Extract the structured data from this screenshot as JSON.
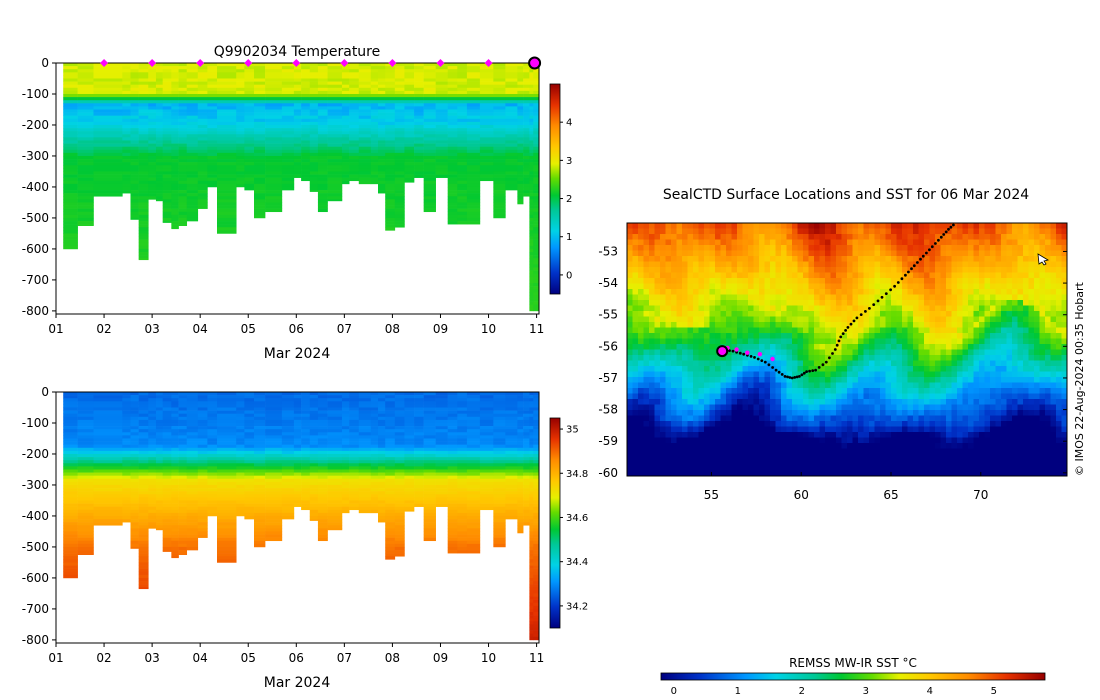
{
  "chart_data": [
    {
      "type": "heatmap",
      "title": "Q9902034  Temperature",
      "xlabel": "Mar 2024",
      "ylabel": "",
      "xlim": [
        1,
        11.05
      ],
      "ylim": [
        -810,
        0
      ],
      "xticks": [
        "01",
        "02",
        "03",
        "04",
        "05",
        "06",
        "07",
        "08",
        "09",
        "10",
        "11"
      ],
      "yticks": [
        "0",
        "-100",
        "-200",
        "-300",
        "-400",
        "-500",
        "-600",
        "-700",
        "-800"
      ],
      "surface_markers_day": [
        2,
        3,
        4,
        5,
        6,
        7,
        8,
        9,
        10,
        11
      ],
      "current_marker_day": 11,
      "profile_starts_day": [
        1.15,
        1.45,
        1.78,
        2.38,
        2.55,
        2.72,
        2.92,
        3.08,
        3.22,
        3.4,
        3.55,
        3.72,
        3.95,
        4.15,
        4.35,
        4.75,
        4.92,
        5.12,
        5.35,
        5.7,
        5.95,
        6.1,
        6.28,
        6.45,
        6.65,
        6.95,
        7.1,
        7.3,
        7.55,
        7.7,
        7.85,
        8.05,
        8.25,
        8.45,
        8.65,
        8.9,
        9.15,
        9.35,
        9.55,
        9.82,
        10.1,
        10.35,
        10.6,
        10.72,
        10.85,
        10.93
      ],
      "profile_max_depth": [
        600,
        525,
        430,
        420,
        505,
        635,
        440,
        445,
        515,
        535,
        525,
        510,
        470,
        400,
        550,
        400,
        410,
        500,
        480,
        410,
        370,
        380,
        415,
        480,
        445,
        390,
        380,
        390,
        390,
        420,
        540,
        530,
        385,
        370,
        480,
        370,
        520,
        520,
        520,
        380,
        500,
        410,
        455,
        430,
        800,
        800
      ],
      "colorbar": {
        "label": "",
        "vmin": -0.5,
        "vmax": 5,
        "ticks": [
          "0",
          "1",
          "2",
          "3",
          "4"
        ]
      }
    },
    {
      "type": "heatmap",
      "title": "",
      "xlabel": "Mar 2024",
      "ylabel": "",
      "xlim": [
        1,
        11.05
      ],
      "ylim": [
        -810,
        0
      ],
      "xticks": [
        "01",
        "02",
        "03",
        "04",
        "05",
        "06",
        "07",
        "08",
        "09",
        "10",
        "11"
      ],
      "yticks": [
        "0",
        "-100",
        "-200",
        "-300",
        "-400",
        "-500",
        "-600",
        "-700",
        "-800"
      ],
      "colorbar": {
        "label": "",
        "vmin": 34.1,
        "vmax": 35.05,
        "ticks": [
          "34.2",
          "34.4",
          "34.6",
          "34.8",
          "35"
        ]
      }
    },
    {
      "type": "heatmap",
      "title": "SealCTD Surface Locations and SST for 06 Mar 2024",
      "xlabel": "",
      "ylabel": "",
      "xlim": [
        50.3,
        74.8
      ],
      "ylim": [
        -60.1,
        -52.1
      ],
      "xticks": [
        "55",
        "60",
        "65",
        "70"
      ],
      "yticks": [
        "-53",
        "-54",
        "-55",
        "-56",
        "-57",
        "-58",
        "-59",
        "-60"
      ],
      "track_lon": [
        55.6,
        56.2,
        56.8,
        57.4,
        58.0,
        58.6,
        59.1,
        59.5,
        59.9,
        60.3,
        60.8,
        61.4,
        61.9,
        62.2,
        62.6,
        63.1,
        63.8,
        64.5,
        65.2,
        65.8,
        66.3,
        66.8,
        67.3,
        67.8,
        68.2,
        68.6
      ],
      "track_lat": [
        -56.1,
        -56.15,
        -56.25,
        -56.35,
        -56.5,
        -56.75,
        -56.95,
        -57.0,
        -56.95,
        -56.8,
        -56.75,
        -56.5,
        -56.1,
        -55.7,
        -55.4,
        -55.1,
        -54.8,
        -54.45,
        -54.1,
        -53.75,
        -53.45,
        -53.15,
        -52.85,
        -52.55,
        -52.3,
        -52.1
      ],
      "recent_lon": [
        55.9,
        56.4,
        57.0,
        57.7,
        58.4
      ],
      "recent_lat": [
        -56.05,
        -56.1,
        -56.2,
        -56.25,
        -56.4
      ],
      "current_position": {
        "lon": 55.6,
        "lat": -56.15
      },
      "colorbar": {
        "label": "REMSS MW-IR SST °C",
        "vmin": -0.2,
        "vmax": 5.8,
        "ticks": [
          "0",
          "1",
          "2",
          "3",
          "4",
          "5"
        ]
      },
      "credit": "© IMOS 22-Aug-2024 00:35 Hobart"
    }
  ]
}
